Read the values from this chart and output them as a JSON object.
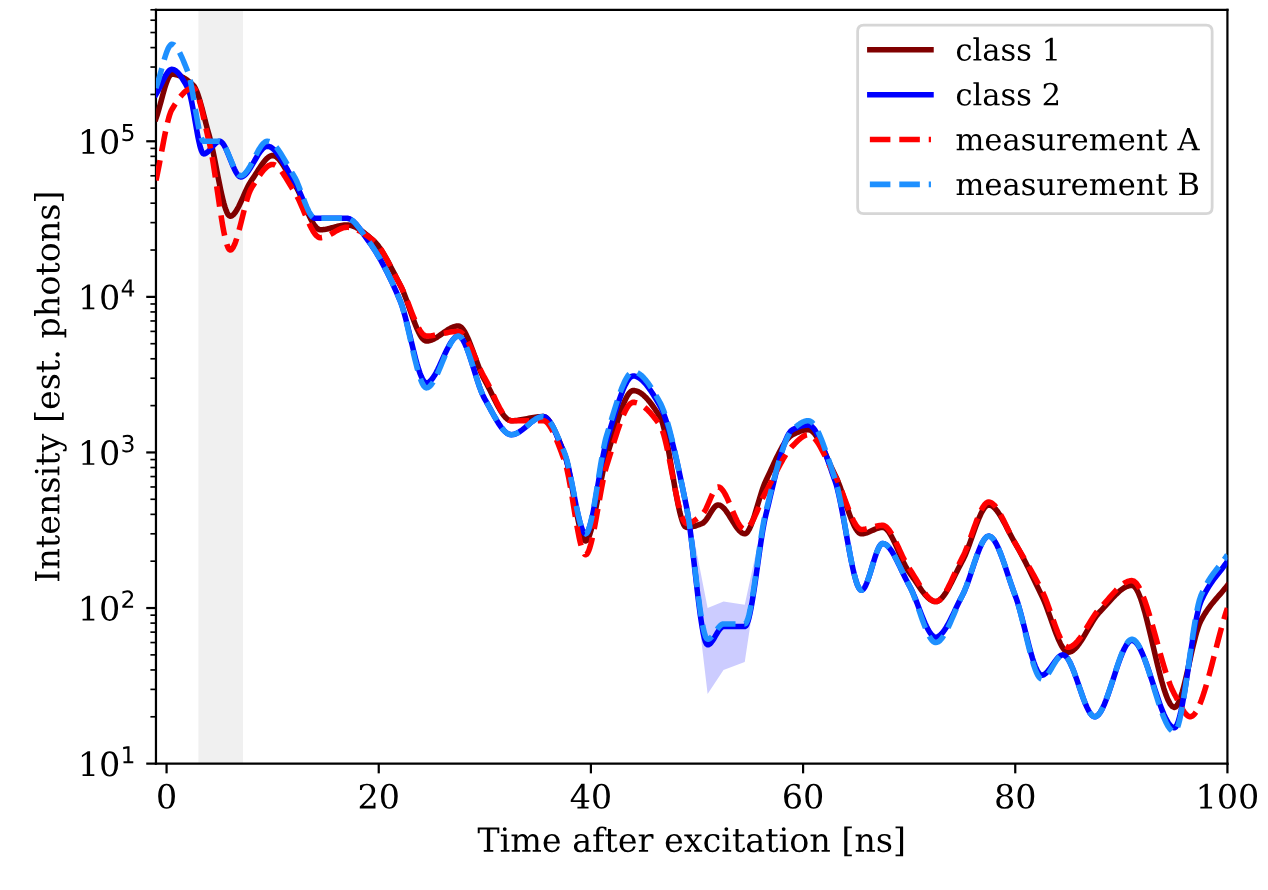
{
  "chart_data": {
    "type": "line",
    "xlabel": "Time after excitation [ns]",
    "ylabel": "Intensity [est. photons]",
    "log": "y",
    "xlim": [
      -1,
      100
    ],
    "ylim": [
      10,
      700000
    ],
    "xticks": [
      0,
      20,
      40,
      60,
      80,
      100
    ],
    "yticks": [
      {
        "value": 10,
        "label": "10$^{1}$"
      },
      {
        "value": 100,
        "label": "10$^{2}$"
      },
      {
        "value": 1000,
        "label": "10$^{3}$"
      },
      {
        "value": 10000,
        "label": "10$^{4}$"
      },
      {
        "value": 100000,
        "label": "10$^{5}$"
      }
    ],
    "grid": false,
    "legend": "top right",
    "bands": [
      {
        "axis": "x",
        "from": 3,
        "to": 7.2,
        "color": "#f0f0f0"
      }
    ],
    "series": [
      {
        "name": "class 1",
        "color": "#800000",
        "line_style": "solid",
        "x": [
          -1,
          0.5,
          2.5,
          4,
          6,
          8,
          10,
          12,
          14.5,
          17,
          19.5,
          22,
          24.5,
          27.5,
          30,
          32.5,
          35.5,
          37.5,
          39.5,
          41.5,
          44,
          46.5,
          49,
          50.5,
          52,
          54.5,
          56.5,
          59,
          60.5,
          63,
          65.5,
          67.5,
          70,
          72.5,
          75,
          77.5,
          80,
          82.5,
          85,
          88,
          91,
          95,
          97.5,
          100
        ],
        "values": [
          140000,
          270000,
          230000,
          110000,
          33000,
          56000,
          81000,
          54000,
          27000,
          29000,
          23000,
          12000,
          5200,
          6500,
          2900,
          1600,
          1700,
          980,
          270,
          950,
          2500,
          1700,
          330,
          350,
          460,
          300,
          660,
          1300,
          1400,
          720,
          300,
          330,
          170,
          110,
          200,
          460,
          260,
          120,
          52,
          95,
          140,
          23,
          83,
          140
        ]
      },
      {
        "name": "class 2",
        "color": "#0000ff",
        "line_style": "solid",
        "x": [
          -1,
          0.5,
          2,
          3.5,
          5,
          7,
          9.5,
          12,
          14,
          17,
          19,
          22,
          24.5,
          27.5,
          30,
          32.5,
          35.5,
          37.5,
          39.5,
          41.5,
          44,
          46.5,
          49,
          51,
          52.5,
          54.5,
          56.5,
          59,
          60.5,
          63,
          65.5,
          67.5,
          70,
          72.5,
          75,
          77.5,
          80,
          82.5,
          84.5,
          87.5,
          91,
          95,
          97.5,
          100
        ],
        "values": [
          200000,
          290000,
          220000,
          83000,
          100000,
          59000,
          93000,
          56000,
          32000,
          32000,
          23000,
          9500,
          2800,
          5600,
          2200,
          1300,
          1700,
          980,
          300,
          1200,
          3100,
          2000,
          450,
          58,
          76,
          76,
          400,
          1400,
          1500,
          660,
          130,
          260,
          140,
          65,
          120,
          290,
          120,
          37,
          50,
          20,
          62,
          17,
          110,
          200
        ],
        "lower": [
          null,
          null,
          null,
          null,
          null,
          null,
          null,
          null,
          null,
          null,
          null,
          null,
          null,
          null,
          null,
          null,
          null,
          null,
          null,
          null,
          null,
          null,
          400,
          28,
          40,
          45,
          360,
          null,
          null,
          null,
          null,
          null,
          null,
          null,
          null,
          null,
          null,
          null,
          null,
          null,
          null,
          null,
          null,
          null
        ],
        "upper": [
          null,
          null,
          null,
          null,
          null,
          null,
          null,
          null,
          null,
          null,
          null,
          null,
          null,
          null,
          null,
          null,
          null,
          null,
          null,
          null,
          null,
          null,
          500,
          100,
          110,
          105,
          450,
          null,
          null,
          null,
          null,
          null,
          null,
          null,
          null,
          null,
          null,
          null,
          null,
          null,
          null,
          null,
          null,
          null
        ]
      },
      {
        "name": "measurement A",
        "color": "#ff0000",
        "line_style": "dashed",
        "x": [
          -1,
          0.5,
          2.5,
          4,
          6,
          8,
          10,
          12,
          14.5,
          17,
          19.5,
          22,
          24.5,
          27.5,
          30,
          32.5,
          35.5,
          37.5,
          39.5,
          41.5,
          44,
          46.5,
          49,
          50.5,
          52,
          54.5,
          56.5,
          59,
          60.5,
          63,
          65.5,
          67.5,
          70,
          72.5,
          75,
          77.5,
          80,
          82.5,
          85,
          88,
          91,
          95,
          96.5,
          100
        ],
        "values": [
          56000,
          160000,
          220000,
          100000,
          20000,
          50000,
          71000,
          48000,
          24000,
          28000,
          23000,
          12000,
          5600,
          6000,
          3000,
          1600,
          1600,
          890,
          220,
          830,
          2100,
          1500,
          350,
          400,
          600,
          320,
          560,
          1100,
          1300,
          710,
          320,
          340,
          180,
          110,
          210,
          480,
          260,
          130,
          56,
          100,
          150,
          28,
          20,
          100
        ]
      },
      {
        "name": "measurement B",
        "color": "#1e90ff",
        "line_style": "dashed",
        "x": [
          -1,
          0.5,
          2,
          3.5,
          5,
          7,
          9.5,
          12,
          14,
          17,
          19,
          22,
          24.5,
          27.5,
          30,
          32.5,
          35.5,
          37.5,
          39.5,
          41.5,
          44,
          46.5,
          49,
          51,
          52.5,
          54.5,
          56.5,
          59,
          60.5,
          63,
          65.5,
          67.5,
          70,
          72.5,
          75,
          77.5,
          80,
          82.5,
          84.5,
          87.5,
          91,
          95,
          97.5,
          100
        ],
        "values": [
          220000,
          420000,
          280000,
          100000,
          100000,
          60000,
          100000,
          60000,
          32000,
          32000,
          23000,
          9500,
          2600,
          5600,
          2200,
          1300,
          1700,
          1000,
          300,
          1300,
          3300,
          2100,
          450,
          63,
          79,
          79,
          420,
          1400,
          1600,
          680,
          130,
          260,
          140,
          60,
          120,
          290,
          120,
          35,
          50,
          20,
          63,
          16,
          120,
          220
        ]
      }
    ]
  }
}
